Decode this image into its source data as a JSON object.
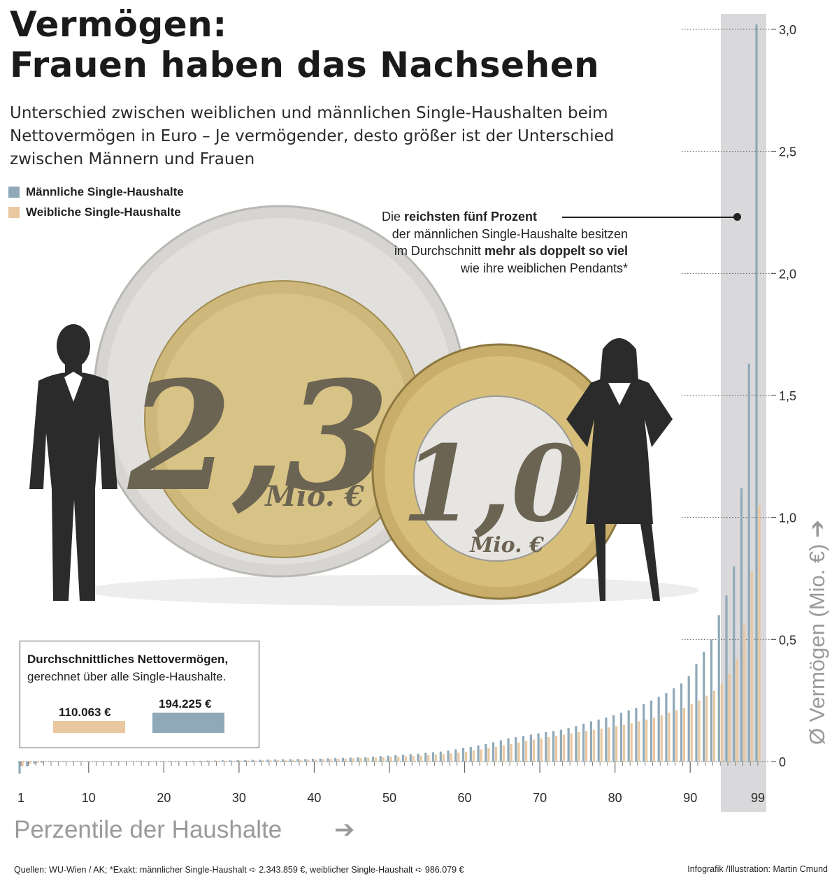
{
  "title": {
    "line1": "Vermögen:",
    "line2": "Frauen haben das Nachsehen"
  },
  "subtitle": "Unterschied zwischen weiblichen und männlichen Single-Haushalten beim Nettovermögen in Euro –  Je vermögender, desto größer ist der Unterschied zwischen Männern und Frauen",
  "colors": {
    "male": "#8fa9b8",
    "female": "#e9c7a0",
    "highlight_band": "#d9d9db",
    "axis_title": "#9a9a9a"
  },
  "legend": [
    {
      "label": "Männliche Single-Haushalte",
      "color": "#8fa9b8"
    },
    {
      "label": "Weibliche Single-Haushalte",
      "color": "#e9c7a0"
    }
  ],
  "annotation": {
    "part1": "Die ",
    "part2": "reichsten fünf Prozent",
    "part3": "der männlichen Single-Haushalte besitzen im Durchschnitt ",
    "part4": "mehr als doppelt so viel",
    "part5": " wie ihre weiblichen Pendants*"
  },
  "coins": {
    "big_value": "2,3",
    "big_unit": "Mio. €",
    "small_value": "1,0",
    "small_unit": "Mio. €"
  },
  "average_box": {
    "title": "Durchschnittliches Nettovermögen,",
    "subtitle": "gerechnet über alle Single-Haushalte.",
    "female_value": "110.063 €",
    "male_value": "194.225 €",
    "female_amount": 110063,
    "male_amount": 194225
  },
  "footer": {
    "sources": "Quellen: WU-Wien / AK; *Exakt: männlicher Single-Haushalt ➪ 2.343.859 €,  weiblicher Single-Haushalt ➪ 986.079 €",
    "credit": "Infografik /Illustration: Martin Cmund"
  },
  "chart_data": {
    "type": "bar",
    "xlabel": "Perzentile der Haushalte",
    "ylabel": "Ø Vermögen (Mio. €)",
    "xlim": [
      1,
      99
    ],
    "ylim": [
      -0.05,
      3.1
    ],
    "x_ticks": [
      "1",
      "10",
      "20",
      "30",
      "40",
      "50",
      "60",
      "70",
      "80",
      "90",
      "99"
    ],
    "y_ticks": [
      "0",
      "0,5",
      "1,0",
      "1,5",
      "2,0",
      "2,5",
      "3,0"
    ],
    "grid": "dotted horizontal at y ticks",
    "highlighted_range": [
      95,
      99
    ],
    "x": [
      1,
      2,
      3,
      4,
      5,
      6,
      7,
      8,
      9,
      10,
      11,
      12,
      13,
      14,
      15,
      16,
      17,
      18,
      19,
      20,
      21,
      22,
      23,
      24,
      25,
      26,
      27,
      28,
      29,
      30,
      31,
      32,
      33,
      34,
      35,
      36,
      37,
      38,
      39,
      40,
      41,
      42,
      43,
      44,
      45,
      46,
      47,
      48,
      49,
      50,
      51,
      52,
      53,
      54,
      55,
      56,
      57,
      58,
      59,
      60,
      61,
      62,
      63,
      64,
      65,
      66,
      67,
      68,
      69,
      70,
      71,
      72,
      73,
      74,
      75,
      76,
      77,
      78,
      79,
      80,
      81,
      82,
      83,
      84,
      85,
      86,
      87,
      88,
      89,
      90,
      91,
      92,
      93,
      94,
      95,
      96,
      97,
      98,
      99
    ],
    "series": [
      {
        "name": "Männliche Single-Haushalte",
        "values": [
          -0.05,
          -0.02,
          -0.01,
          -0.005,
          -0.002,
          -0.001,
          0,
          0,
          0,
          0,
          0,
          0,
          0,
          0,
          0,
          0,
          0.001,
          0.001,
          0.001,
          0.001,
          0.002,
          0.002,
          0.002,
          0.003,
          0.003,
          0.004,
          0.004,
          0.005,
          0.005,
          0.006,
          0.006,
          0.007,
          0.007,
          0.008,
          0.008,
          0.009,
          0.009,
          0.01,
          0.01,
          0.011,
          0.012,
          0.013,
          0.014,
          0.015,
          0.016,
          0.017,
          0.018,
          0.02,
          0.022,
          0.024,
          0.026,
          0.028,
          0.03,
          0.032,
          0.035,
          0.038,
          0.041,
          0.045,
          0.05,
          0.055,
          0.06,
          0.066,
          0.072,
          0.079,
          0.087,
          0.095,
          0.1,
          0.105,
          0.11,
          0.116,
          0.12,
          0.125,
          0.13,
          0.137,
          0.145,
          0.155,
          0.165,
          0.172,
          0.18,
          0.19,
          0.2,
          0.21,
          0.22,
          0.235,
          0.25,
          0.265,
          0.28,
          0.3,
          0.32,
          0.35,
          0.4,
          0.45,
          0.5,
          0.6,
          0.68,
          0.8,
          1.12,
          1.63,
          3.02
        ]
      },
      {
        "name": "Weibliche Single-Haushalte",
        "values": [
          -0.02,
          -0.01,
          -0.005,
          -0.002,
          -0.001,
          0,
          0,
          0,
          0,
          0,
          0,
          0,
          0,
          0,
          0,
          0,
          0,
          0,
          0.001,
          0.001,
          0.001,
          0.001,
          0.001,
          0.002,
          0.002,
          0.002,
          0.003,
          0.003,
          0.003,
          0.004,
          0.004,
          0.004,
          0.005,
          0.005,
          0.006,
          0.006,
          0.007,
          0.007,
          0.008,
          0.008,
          0.009,
          0.01,
          0.011,
          0.012,
          0.013,
          0.014,
          0.015,
          0.016,
          0.018,
          0.019,
          0.02,
          0.021,
          0.022,
          0.024,
          0.026,
          0.028,
          0.03,
          0.033,
          0.036,
          0.04,
          0.045,
          0.05,
          0.055,
          0.06,
          0.066,
          0.072,
          0.078,
          0.084,
          0.09,
          0.095,
          0.1,
          0.105,
          0.11,
          0.116,
          0.12,
          0.125,
          0.13,
          0.135,
          0.14,
          0.145,
          0.15,
          0.157,
          0.165,
          0.172,
          0.18,
          0.19,
          0.2,
          0.21,
          0.22,
          0.235,
          0.25,
          0.27,
          0.29,
          0.32,
          0.36,
          0.42,
          0.56,
          0.78,
          1.05
        ]
      }
    ]
  }
}
